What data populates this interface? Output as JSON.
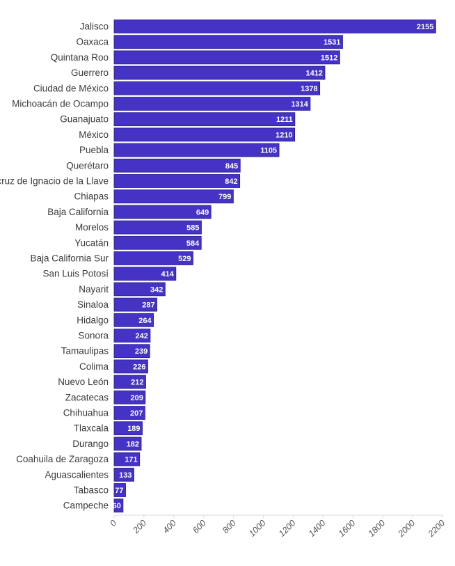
{
  "chart_data": {
    "type": "bar",
    "orientation": "horizontal",
    "categories": [
      "Jalisco",
      "Oaxaca",
      "Quintana Roo",
      "Guerrero",
      "Ciudad de México",
      "Michoacán de Ocampo",
      "Guanajuato",
      "México",
      "Puebla",
      "Querétaro",
      "Veracruz de Ignacio de la Llave",
      "Chiapas",
      "Baja California",
      "Morelos",
      "Yucatán",
      "Baja California Sur",
      "San Luis Potosí",
      "Nayarit",
      "Sinaloa",
      "Hidalgo",
      "Sonora",
      "Tamaulipas",
      "Colima",
      "Nuevo León",
      "Zacatecas",
      "Chihuahua",
      "Tlaxcala",
      "Durango",
      "Coahuila de Zaragoza",
      "Aguascalientes",
      "Tabasco",
      "Campeche"
    ],
    "values": [
      2155,
      1531,
      1512,
      1412,
      1378,
      1314,
      1211,
      1210,
      1105,
      845,
      842,
      799,
      649,
      585,
      584,
      529,
      414,
      342,
      287,
      264,
      242,
      239,
      226,
      212,
      209,
      207,
      189,
      182,
      171,
      133,
      77,
      60
    ],
    "xlim": [
      0,
      2200
    ],
    "xticks": [
      0,
      200,
      400,
      600,
      800,
      1000,
      1200,
      1400,
      1600,
      1800,
      2000,
      2200
    ],
    "title": "",
    "xlabel": "",
    "ylabel": "",
    "data_labels": true,
    "grid": false,
    "colors": {
      "bar": "#4433c4",
      "bar_outline": "#2a1f90",
      "data_label": "#ffffff",
      "category_label": "#3a3a3a",
      "tick_label": "#555555",
      "axis_line": "#d9d9e0"
    }
  }
}
